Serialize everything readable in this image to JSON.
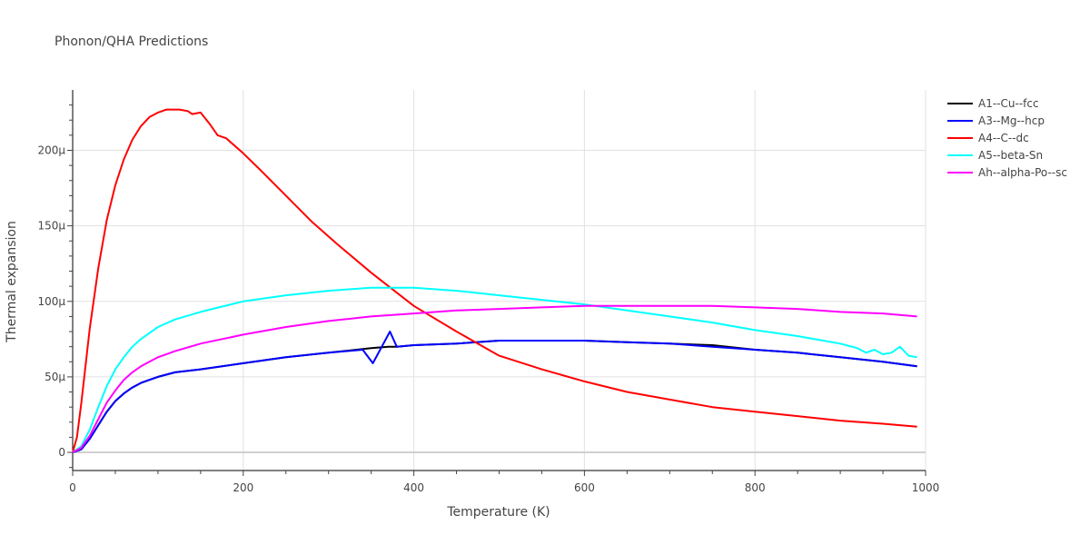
{
  "chart_data": {
    "type": "line",
    "title": "Phonon/QHA Predictions",
    "xlabel": "Temperature (K)",
    "ylabel": "Thermal expansion",
    "xlim": [
      0,
      1000
    ],
    "ylim": [
      -12,
      240
    ],
    "x_ticks": [
      0,
      200,
      400,
      600,
      800,
      1000
    ],
    "x_tick_labels": [
      "0",
      "200",
      "400",
      "600",
      "800",
      "1000"
    ],
    "y_ticks": [
      0,
      50,
      100,
      150,
      200
    ],
    "y_tick_labels": [
      "0",
      "50μ",
      "100μ",
      "150μ",
      "200μ"
    ],
    "y_unit_note": "values in units of 1e-6 (μ)",
    "grid": true,
    "legend_position": "right",
    "series": [
      {
        "name": "A1--Cu--fcc",
        "color": "#000000",
        "points": [
          [
            0,
            0
          ],
          [
            10,
            2
          ],
          [
            20,
            9
          ],
          [
            30,
            18
          ],
          [
            40,
            27
          ],
          [
            50,
            34
          ],
          [
            60,
            39
          ],
          [
            70,
            43
          ],
          [
            80,
            46
          ],
          [
            90,
            48
          ],
          [
            100,
            50
          ],
          [
            120,
            53
          ],
          [
            150,
            55
          ],
          [
            200,
            59
          ],
          [
            250,
            63
          ],
          [
            300,
            66
          ],
          [
            350,
            69
          ],
          [
            370,
            70
          ],
          [
            380,
            70
          ],
          [
            400,
            71
          ],
          [
            450,
            72
          ],
          [
            500,
            74
          ],
          [
            550,
            74
          ],
          [
            600,
            74
          ],
          [
            650,
            73
          ],
          [
            700,
            72
          ],
          [
            750,
            71
          ],
          [
            800,
            68
          ],
          [
            850,
            66
          ],
          [
            900,
            63
          ],
          [
            950,
            60
          ],
          [
            990,
            57
          ]
        ]
      },
      {
        "name": "A3--Mg--hcp",
        "color": "#0000ff",
        "points": [
          [
            0,
            0
          ],
          [
            10,
            2
          ],
          [
            20,
            9
          ],
          [
            30,
            18
          ],
          [
            40,
            27
          ],
          [
            50,
            34
          ],
          [
            60,
            39
          ],
          [
            70,
            43
          ],
          [
            80,
            46
          ],
          [
            90,
            48
          ],
          [
            100,
            50
          ],
          [
            120,
            53
          ],
          [
            150,
            55
          ],
          [
            200,
            59
          ],
          [
            250,
            63
          ],
          [
            300,
            66
          ],
          [
            340,
            68
          ],
          [
            352,
            59
          ],
          [
            372,
            80
          ],
          [
            380,
            70
          ],
          [
            400,
            71
          ],
          [
            450,
            72
          ],
          [
            500,
            74
          ],
          [
            550,
            74
          ],
          [
            600,
            74
          ],
          [
            650,
            73
          ],
          [
            700,
            72
          ],
          [
            750,
            70
          ],
          [
            800,
            68
          ],
          [
            850,
            66
          ],
          [
            900,
            63
          ],
          [
            950,
            60
          ],
          [
            990,
            57
          ]
        ]
      },
      {
        "name": "A4--C--dc",
        "color": "#ff0000",
        "points": [
          [
            0,
            0
          ],
          [
            5,
            10
          ],
          [
            10,
            32
          ],
          [
            20,
            82
          ],
          [
            30,
            122
          ],
          [
            40,
            154
          ],
          [
            50,
            177
          ],
          [
            60,
            194
          ],
          [
            70,
            207
          ],
          [
            80,
            216
          ],
          [
            90,
            222
          ],
          [
            100,
            225
          ],
          [
            110,
            227
          ],
          [
            125,
            227
          ],
          [
            135,
            226
          ],
          [
            140,
            224
          ],
          [
            150,
            225
          ],
          [
            160,
            218
          ],
          [
            170,
            210
          ],
          [
            180,
            208
          ],
          [
            200,
            198
          ],
          [
            220,
            187
          ],
          [
            250,
            170
          ],
          [
            280,
            153
          ],
          [
            310,
            138
          ],
          [
            350,
            119
          ],
          [
            400,
            97
          ],
          [
            450,
            80
          ],
          [
            500,
            64
          ],
          [
            550,
            55
          ],
          [
            600,
            47
          ],
          [
            650,
            40
          ],
          [
            700,
            35
          ],
          [
            750,
            30
          ],
          [
            800,
            27
          ],
          [
            850,
            24
          ],
          [
            900,
            21
          ],
          [
            950,
            19
          ],
          [
            990,
            17
          ]
        ]
      },
      {
        "name": "A5--beta-Sn",
        "color": "#00ffff",
        "points": [
          [
            0,
            0
          ],
          [
            10,
            4
          ],
          [
            20,
            15
          ],
          [
            30,
            30
          ],
          [
            40,
            44
          ],
          [
            50,
            55
          ],
          [
            60,
            63
          ],
          [
            70,
            70
          ],
          [
            80,
            75
          ],
          [
            100,
            83
          ],
          [
            120,
            88
          ],
          [
            150,
            93
          ],
          [
            200,
            100
          ],
          [
            250,
            104
          ],
          [
            300,
            107
          ],
          [
            350,
            109
          ],
          [
            400,
            109
          ],
          [
            450,
            107
          ],
          [
            500,
            104
          ],
          [
            550,
            101
          ],
          [
            600,
            98
          ],
          [
            650,
            94
          ],
          [
            700,
            90
          ],
          [
            750,
            86
          ],
          [
            800,
            81
          ],
          [
            850,
            77
          ],
          [
            900,
            72
          ],
          [
            920,
            69
          ],
          [
            930,
            66
          ],
          [
            940,
            68
          ],
          [
            950,
            65
          ],
          [
            960,
            66
          ],
          [
            970,
            70
          ],
          [
            980,
            64
          ],
          [
            990,
            63
          ]
        ]
      },
      {
        "name": "Ah--alpha-Po--sc",
        "color": "#ff00ff",
        "points": [
          [
            0,
            0
          ],
          [
            10,
            3
          ],
          [
            20,
            11
          ],
          [
            30,
            22
          ],
          [
            40,
            33
          ],
          [
            50,
            41
          ],
          [
            60,
            48
          ],
          [
            70,
            53
          ],
          [
            80,
            57
          ],
          [
            100,
            63
          ],
          [
            120,
            67
          ],
          [
            150,
            72
          ],
          [
            200,
            78
          ],
          [
            250,
            83
          ],
          [
            300,
            87
          ],
          [
            350,
            90
          ],
          [
            400,
            92
          ],
          [
            450,
            94
          ],
          [
            500,
            95
          ],
          [
            550,
            96
          ],
          [
            600,
            97
          ],
          [
            650,
            97
          ],
          [
            700,
            97
          ],
          [
            750,
            97
          ],
          [
            800,
            96
          ],
          [
            850,
            95
          ],
          [
            900,
            93
          ],
          [
            950,
            92
          ],
          [
            990,
            90
          ]
        ]
      }
    ]
  }
}
